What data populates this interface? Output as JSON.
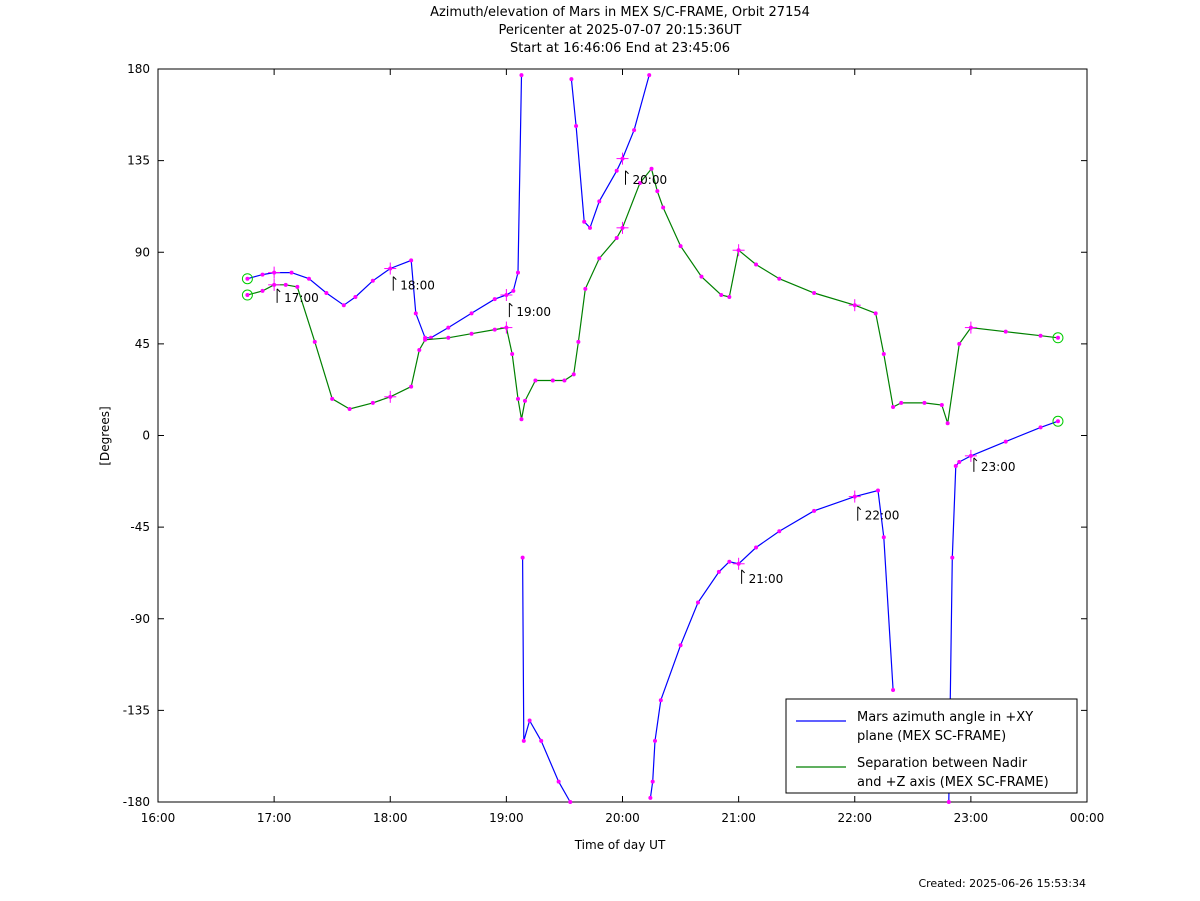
{
  "title": {
    "line1": "Azimuth/elevation of Mars in MEX S/C-FRAME,  Orbit 27154",
    "line2": "Pericenter at 2025-07-07 20:15:36UT",
    "line3": "Start at 16:46:06 End at 23:45:06"
  },
  "created": "Created: 2025-06-26 15:53:34",
  "chart_data": {
    "type": "line",
    "xlabel": "Time of day UT",
    "ylabel": "[Degrees]",
    "xlim": [
      16.0,
      24.0
    ],
    "ylim": [
      -180,
      180
    ],
    "x_ticks": [
      16,
      17,
      18,
      19,
      20,
      21,
      22,
      23,
      24
    ],
    "x_tick_labels": [
      "16:00",
      "17:00",
      "18:00",
      "19:00",
      "20:00",
      "21:00",
      "22:00",
      "23:00",
      "00:00"
    ],
    "y_ticks": [
      180,
      135,
      90,
      45,
      0,
      -45,
      -90,
      -135,
      -180
    ],
    "y_tick_labels": [
      "180",
      "135",
      "90",
      "45",
      "0",
      "-45",
      "-90",
      "-135",
      "-180"
    ],
    "grid": false,
    "legend_position": "bottom-right",
    "hour_annotations": [
      {
        "label": "17:00",
        "x": 17.0,
        "y": -72
      },
      {
        "label": "18:00",
        "x": 18.0,
        "y": -79
      },
      {
        "label": "19:00",
        "x": 19.0,
        "y": -66
      },
      {
        "label": "20:00",
        "x": 20.0,
        "y": -131
      },
      {
        "label": "21:00",
        "x": 21.0,
        "y": 64
      },
      {
        "label": "22:00",
        "x": 22.0,
        "y": 35
      },
      {
        "label": "23:00",
        "x": 23.0,
        "y": 9
      }
    ],
    "series": [
      {
        "name": "Mars azimuth angle in +XY plane (MEX SC-FRAME)",
        "legend_lines": [
          "Mars azimuth angle in +XY",
          "plane (MEX SC-FRAME)"
        ],
        "color": "#0000ff",
        "x": [
          16.77,
          16.9,
          17.0,
          17.15,
          17.3,
          17.45,
          17.6,
          17.7,
          17.85,
          18.0,
          18.18,
          18.22,
          18.3,
          18.35,
          18.5,
          18.7,
          18.9,
          19.0,
          19.06,
          19.1,
          19.13,
          null,
          19.14,
          19.15,
          19.2,
          19.3,
          19.45,
          19.55,
          null,
          19.56,
          19.6,
          19.67,
          19.72,
          19.8,
          19.95,
          20.0,
          20.1,
          20.23,
          null,
          20.24,
          20.26,
          20.28,
          20.33,
          20.5,
          20.65,
          20.83,
          20.92,
          21.0,
          21.15,
          21.35,
          21.65,
          22.0,
          22.2,
          22.25,
          22.33,
          null,
          22.81,
          22.84,
          22.87,
          22.9,
          23.0,
          23.3,
          23.6,
          23.75
        ],
        "y": [
          77,
          79,
          80,
          80,
          77,
          70,
          64,
          68,
          76,
          82,
          86,
          60,
          48,
          48,
          53,
          60,
          67,
          69,
          71,
          80,
          177,
          null,
          -60,
          -150,
          -140,
          -150,
          -170,
          -180,
          null,
          175,
          152,
          105,
          102,
          115,
          130,
          136,
          150,
          177,
          null,
          -178,
          -170,
          -150,
          -130,
          -103,
          -82,
          -67,
          -62,
          -63,
          -55,
          -47,
          -37,
          -30,
          -27,
          -50,
          -125,
          null,
          -180,
          -60,
          -15,
          -13,
          -10,
          -3,
          4,
          7
        ]
      },
      {
        "name": "Separation between Nadir and +Z axis (MEX SC-FRAME)",
        "legend_lines": [
          "Separation between Nadir",
          "and +Z axis (MEX SC-FRAME)"
        ],
        "color": "#008000",
        "x": [
          16.77,
          16.9,
          17.0,
          17.1,
          17.2,
          17.35,
          17.5,
          17.65,
          17.85,
          18.0,
          18.18,
          18.25,
          18.3,
          18.5,
          18.7,
          18.9,
          19.0,
          19.05,
          19.1,
          19.13,
          19.16,
          19.25,
          19.4,
          19.5,
          19.58,
          19.62,
          19.68,
          19.8,
          19.95,
          20.0,
          20.15,
          20.25,
          20.3,
          20.35,
          20.5,
          20.68,
          20.85,
          20.92,
          21.0,
          21.15,
          21.35,
          21.65,
          22.0,
          22.18,
          22.25,
          22.33,
          22.4,
          22.6,
          22.75,
          22.8,
          22.9,
          23.0,
          23.3,
          23.6,
          23.75
        ],
        "y": [
          69,
          71,
          74,
          74,
          73,
          46,
          18,
          13,
          16,
          19,
          24,
          42,
          47,
          48,
          50,
          52,
          53,
          40,
          18,
          8,
          17,
          27,
          27,
          27,
          30,
          46,
          72,
          87,
          97,
          102,
          124,
          131,
          120,
          112,
          93,
          78,
          69,
          68,
          91,
          84,
          77,
          70,
          64,
          60,
          40,
          14,
          16,
          16,
          15,
          6,
          45,
          53,
          51,
          49,
          48
        ]
      }
    ]
  }
}
